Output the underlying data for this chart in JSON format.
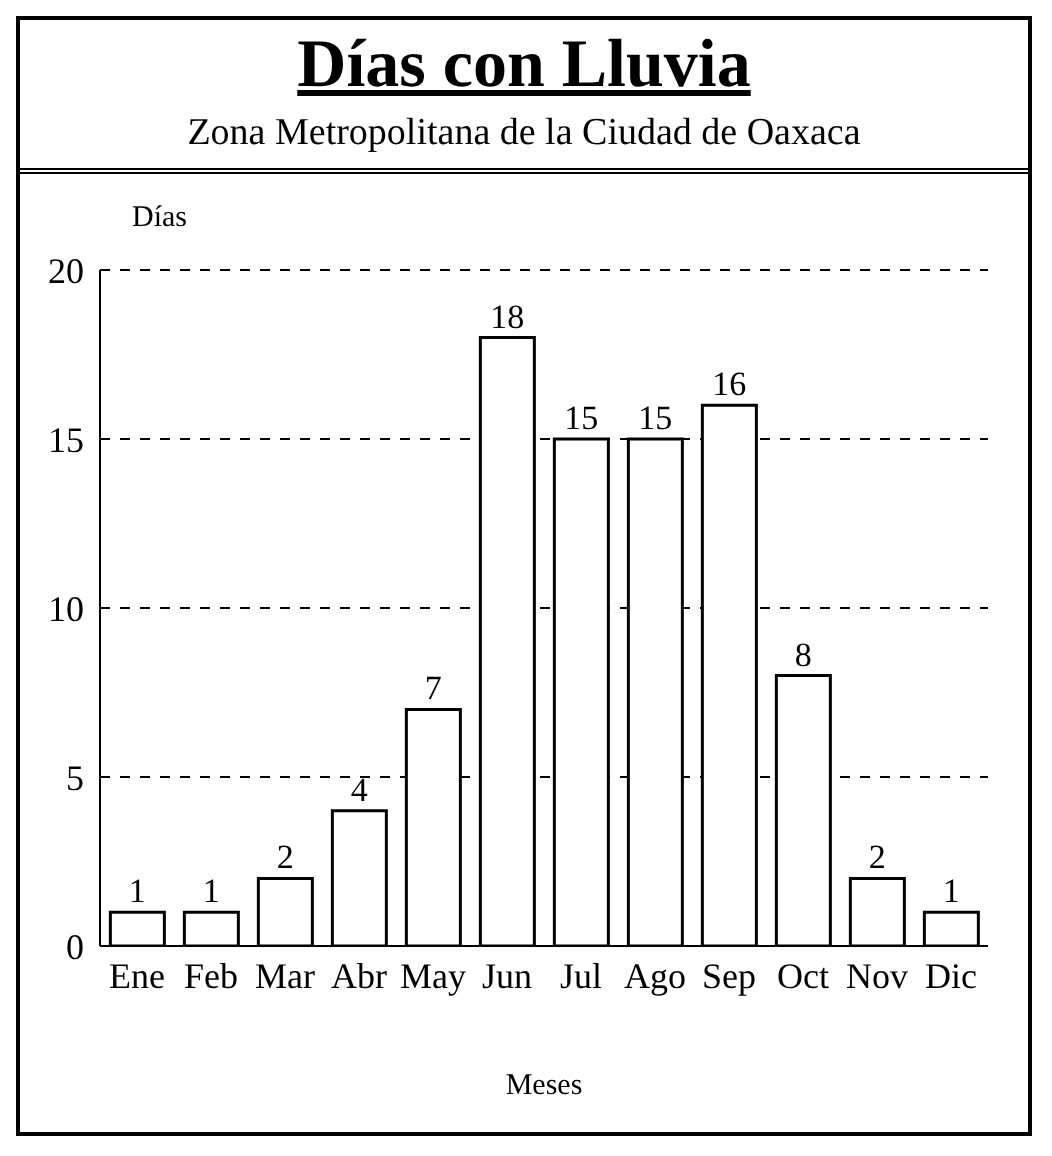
{
  "chart_data": {
    "type": "bar",
    "title": "Días con Lluvia",
    "subtitle": "Zona Metropolitana de la Ciudad de Oaxaca",
    "ylabel": "Días",
    "xlabel": "Meses",
    "categories": [
      "Ene",
      "Feb",
      "Mar",
      "Abr",
      "May",
      "Jun",
      "Jul",
      "Ago",
      "Sep",
      "Oct",
      "Nov",
      "Dic"
    ],
    "values": [
      1,
      1,
      2,
      4,
      7,
      18,
      15,
      15,
      16,
      8,
      2,
      1
    ],
    "color": "#ffffff",
    "ylim": [
      0,
      20
    ],
    "yticks": [
      0,
      5,
      10,
      15,
      20
    ],
    "grid": "y",
    "data_labels": true
  }
}
